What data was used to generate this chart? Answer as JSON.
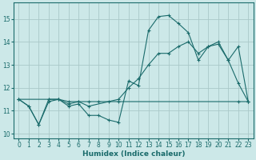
{
  "xlabel": "Humidex (Indice chaleur)",
  "xlim": [
    -0.5,
    23.5
  ],
  "ylim": [
    9.8,
    15.7
  ],
  "yticks": [
    10,
    11,
    12,
    13,
    14,
    15
  ],
  "xticks": [
    0,
    1,
    2,
    3,
    4,
    5,
    6,
    7,
    8,
    9,
    10,
    11,
    12,
    13,
    14,
    15,
    16,
    17,
    18,
    19,
    20,
    21,
    22,
    23
  ],
  "bg_color": "#cce8e8",
  "grid_color": "#aac8c8",
  "line_color": "#1a6b6b",
  "series1_x": [
    0,
    1,
    2,
    3,
    4,
    5,
    6,
    7,
    8,
    9,
    10,
    11,
    12,
    13,
    14,
    15,
    16,
    17,
    18,
    19,
    20,
    21,
    22,
    23
  ],
  "series1_y": [
    11.5,
    11.2,
    10.4,
    11.5,
    11.5,
    11.2,
    11.3,
    10.8,
    10.8,
    10.6,
    10.5,
    12.3,
    12.1,
    14.5,
    15.1,
    15.15,
    14.8,
    14.4,
    13.2,
    13.8,
    14.0,
    13.2,
    12.2,
    11.4
  ],
  "series2_x": [
    0,
    3,
    4,
    5,
    6,
    7,
    10,
    11,
    12,
    13,
    14,
    15,
    16,
    17,
    18,
    19,
    20,
    21,
    22,
    23
  ],
  "series2_y": [
    11.5,
    11.5,
    11.5,
    11.3,
    11.4,
    11.2,
    11.5,
    12.0,
    12.4,
    13.0,
    13.5,
    13.5,
    13.8,
    14.0,
    13.5,
    13.8,
    13.9,
    13.2,
    13.8,
    11.4
  ],
  "series3_x": [
    0,
    1,
    2,
    3,
    4,
    5,
    6,
    7,
    8,
    9,
    10,
    22,
    23
  ],
  "series3_y": [
    11.5,
    11.2,
    10.4,
    11.4,
    11.5,
    11.4,
    11.4,
    11.4,
    11.4,
    11.4,
    11.4,
    11.4,
    11.4
  ]
}
